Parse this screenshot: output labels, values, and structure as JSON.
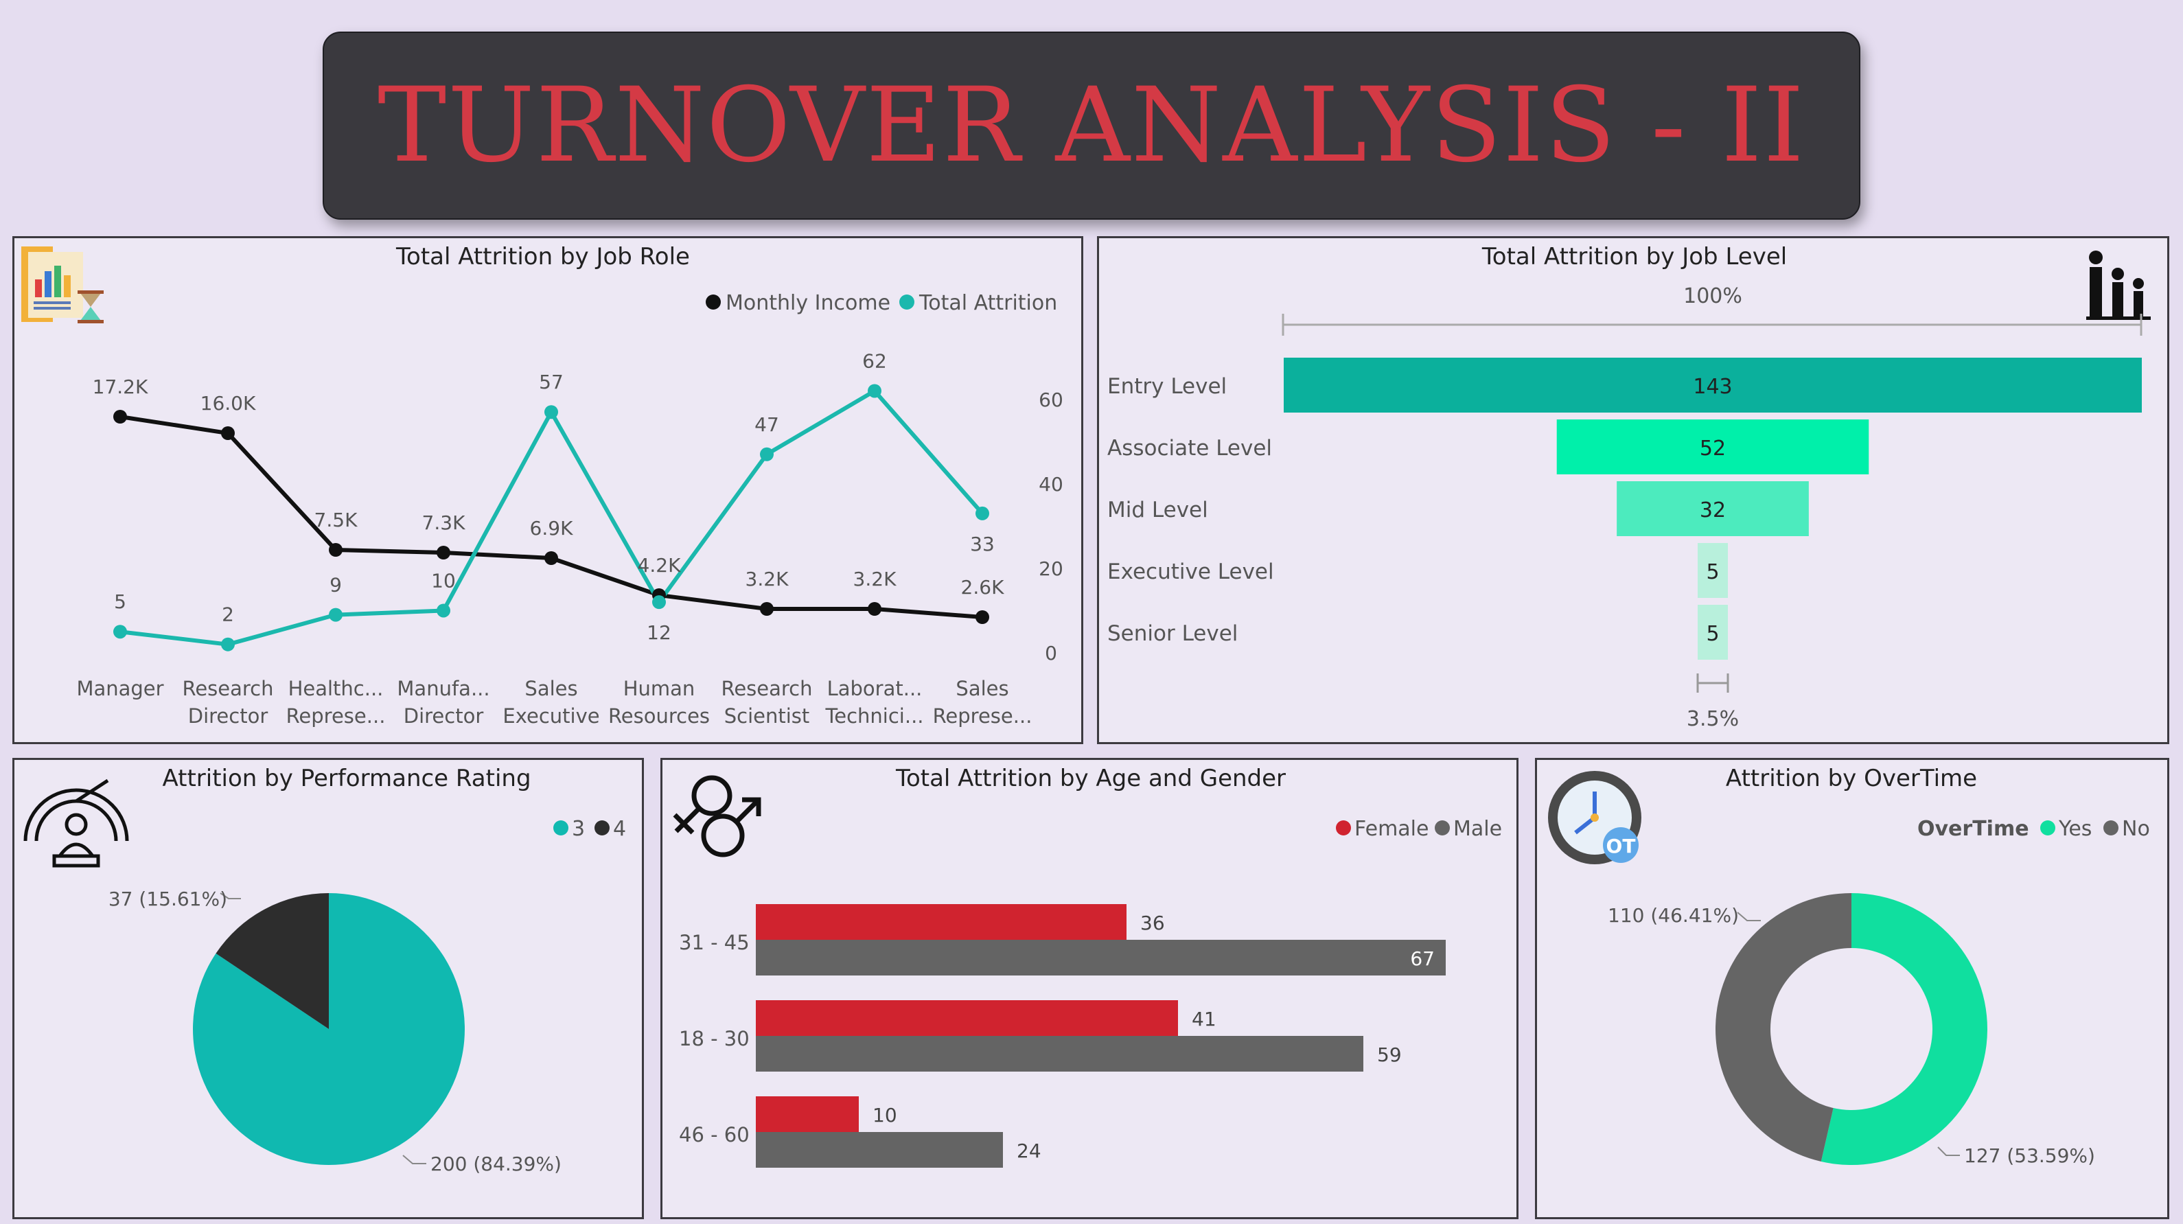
{
  "header": {
    "title": "TURNOVER ANALYSIS - II"
  },
  "colors": {
    "teal": "#1bb8ad",
    "black": "#111111",
    "job_level_1": "#0bb09c",
    "job_level_2": "#00f0aa",
    "job_level_3": "#4cebbe",
    "job_level_4": "#b8f0dc",
    "job_level_5": "#b8f0dc",
    "perf_3": "#10b9b0",
    "perf_4": "#2d2d2d",
    "female": "#d0232f",
    "male": "#646464",
    "ot_yes": "#10df9f",
    "ot_no": "#656565"
  },
  "panels": {
    "job_role": {
      "title": "Total Attrition by Job Role",
      "icon": "attrition-report-icon",
      "legend": [
        "Monthly Income",
        "Total Attrition"
      ]
    },
    "job_level": {
      "title": "Total Attrition by Job Level",
      "icon": "people-hierarchy-icon",
      "top_label": "100%",
      "bottom_label": "3.5%"
    },
    "performance": {
      "title": "Attrition by Performance Rating",
      "icon": "performance-gauge-icon",
      "legend": [
        "3",
        "4"
      ]
    },
    "age_gender": {
      "title": "Total Attrition by Age and Gender",
      "icon": "gender-symbols-icon",
      "legend": [
        "Female",
        "Male"
      ]
    },
    "overtime": {
      "title": "Attrition by OverTime",
      "icon": "overtime-clock-icon",
      "badge": "OT",
      "legend_title": "OverTime",
      "legend": [
        "Yes",
        "No"
      ]
    }
  },
  "chart_data": [
    {
      "type": "line",
      "title": "Total Attrition by Job Role",
      "categories": [
        [
          "Manager"
        ],
        [
          "Research",
          "Director"
        ],
        [
          "Healthc...",
          "Represe..."
        ],
        [
          "Manufa...",
          "Director"
        ],
        [
          "Sales",
          "Executive"
        ],
        [
          "Human",
          "Resources"
        ],
        [
          "Research",
          "Scientist"
        ],
        [
          "Laborat...",
          "Technici..."
        ],
        [
          "Sales",
          "Represe..."
        ]
      ],
      "series": [
        {
          "name": "Monthly Income",
          "values": [
            17200,
            16000,
            7500,
            7300,
            6900,
            4200,
            3200,
            3200,
            2600
          ],
          "labels": [
            "17.2K",
            "16.0K",
            "7.5K",
            "7.3K",
            "6.9K",
            "4.2K",
            "3.2K",
            "3.2K",
            "2.6K"
          ]
        },
        {
          "name": "Total Attrition",
          "values": [
            5,
            2,
            9,
            10,
            57,
            12,
            47,
            62,
            33
          ],
          "labels": [
            "5",
            "2",
            "9",
            "10",
            "57",
            "12",
            "47",
            "62",
            "33"
          ]
        }
      ],
      "income_scale": [
        0,
        20000
      ],
      "y2_ticks": [
        "0",
        "20",
        "40",
        "60"
      ],
      "y2_range": [
        0,
        65
      ]
    },
    {
      "type": "bar",
      "subtype": "funnel",
      "title": "Total Attrition by Job Level",
      "categories": [
        "Entry Level",
        "Associate Level",
        "Mid Level",
        "Executive Level",
        "Senior Level"
      ],
      "values": [
        143,
        52,
        32,
        5,
        5
      ]
    },
    {
      "type": "pie",
      "title": "Attrition by Performance Rating",
      "categories": [
        "3",
        "4"
      ],
      "values": [
        200,
        37
      ],
      "labels": [
        "200 (84.39%)",
        "37 (15.61%)"
      ]
    },
    {
      "type": "bar",
      "orientation": "horizontal",
      "title": "Total Attrition by Age and Gender",
      "categories": [
        "31 - 45",
        "18 - 30",
        "46 - 60"
      ],
      "series": [
        {
          "name": "Female",
          "values": [
            36,
            41,
            10
          ]
        },
        {
          "name": "Male",
          "values": [
            67,
            59,
            24
          ]
        }
      ],
      "xlim": [
        0,
        70
      ]
    },
    {
      "type": "pie",
      "subtype": "donut",
      "title": "Attrition by OverTime",
      "categories": [
        "Yes",
        "No"
      ],
      "values": [
        127,
        110
      ],
      "labels": [
        "127 (53.59%)",
        "110 (46.41%)"
      ]
    }
  ]
}
